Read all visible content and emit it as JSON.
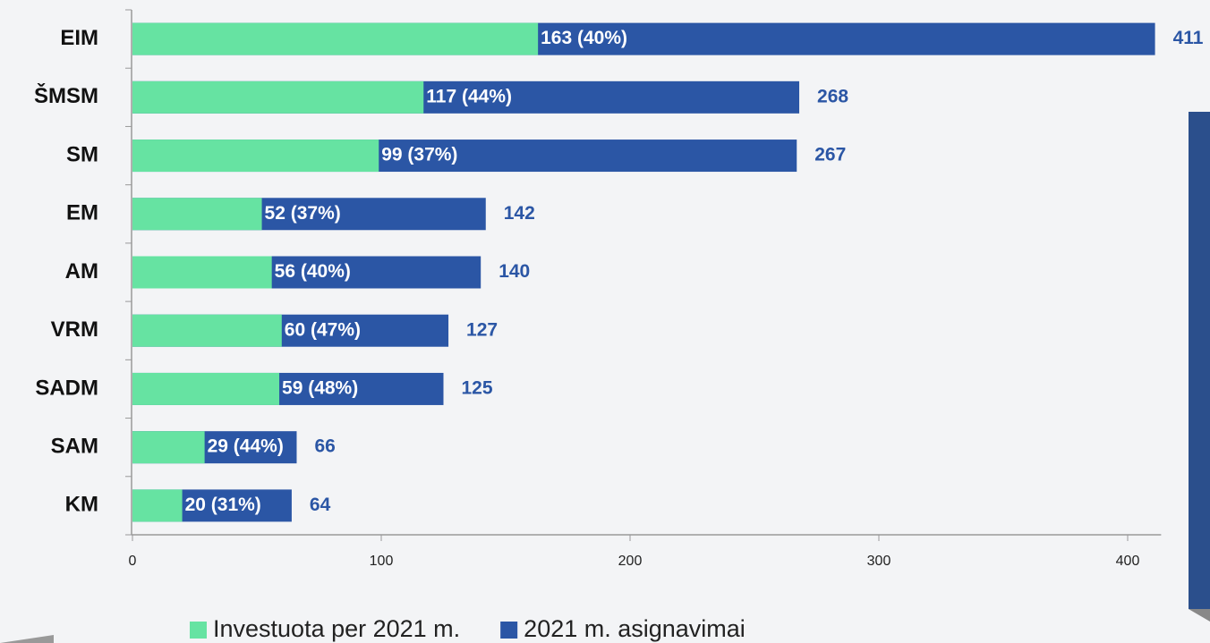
{
  "chart_data": {
    "type": "bar",
    "categories": [
      "EIM",
      "ŠMSM",
      "SM",
      "EM",
      "AM",
      "VRM",
      "SADM",
      "SAM",
      "KM"
    ],
    "series": [
      {
        "name": "2021 m. asignavimai",
        "color": "#2b56a5",
        "values": [
          411,
          268,
          267,
          142,
          140,
          127,
          125,
          66,
          64
        ]
      },
      {
        "name": "Investuota per 2021 m.",
        "color": "#66e3a2",
        "values": [
          163,
          117,
          99,
          52,
          56,
          60,
          59,
          29,
          20
        ],
        "value_labels": [
          "163 (40%)",
          "117 (44%)",
          "99 (37%)",
          "52 (37%)",
          "56 (40%)",
          "60 (47%)",
          "59 (48%)",
          "29 (44%)",
          "20 (31%)"
        ]
      }
    ],
    "xlim": [
      0,
      412
    ],
    "xticks": [
      0,
      100,
      200,
      300,
      400
    ],
    "legend": "bottom"
  }
}
